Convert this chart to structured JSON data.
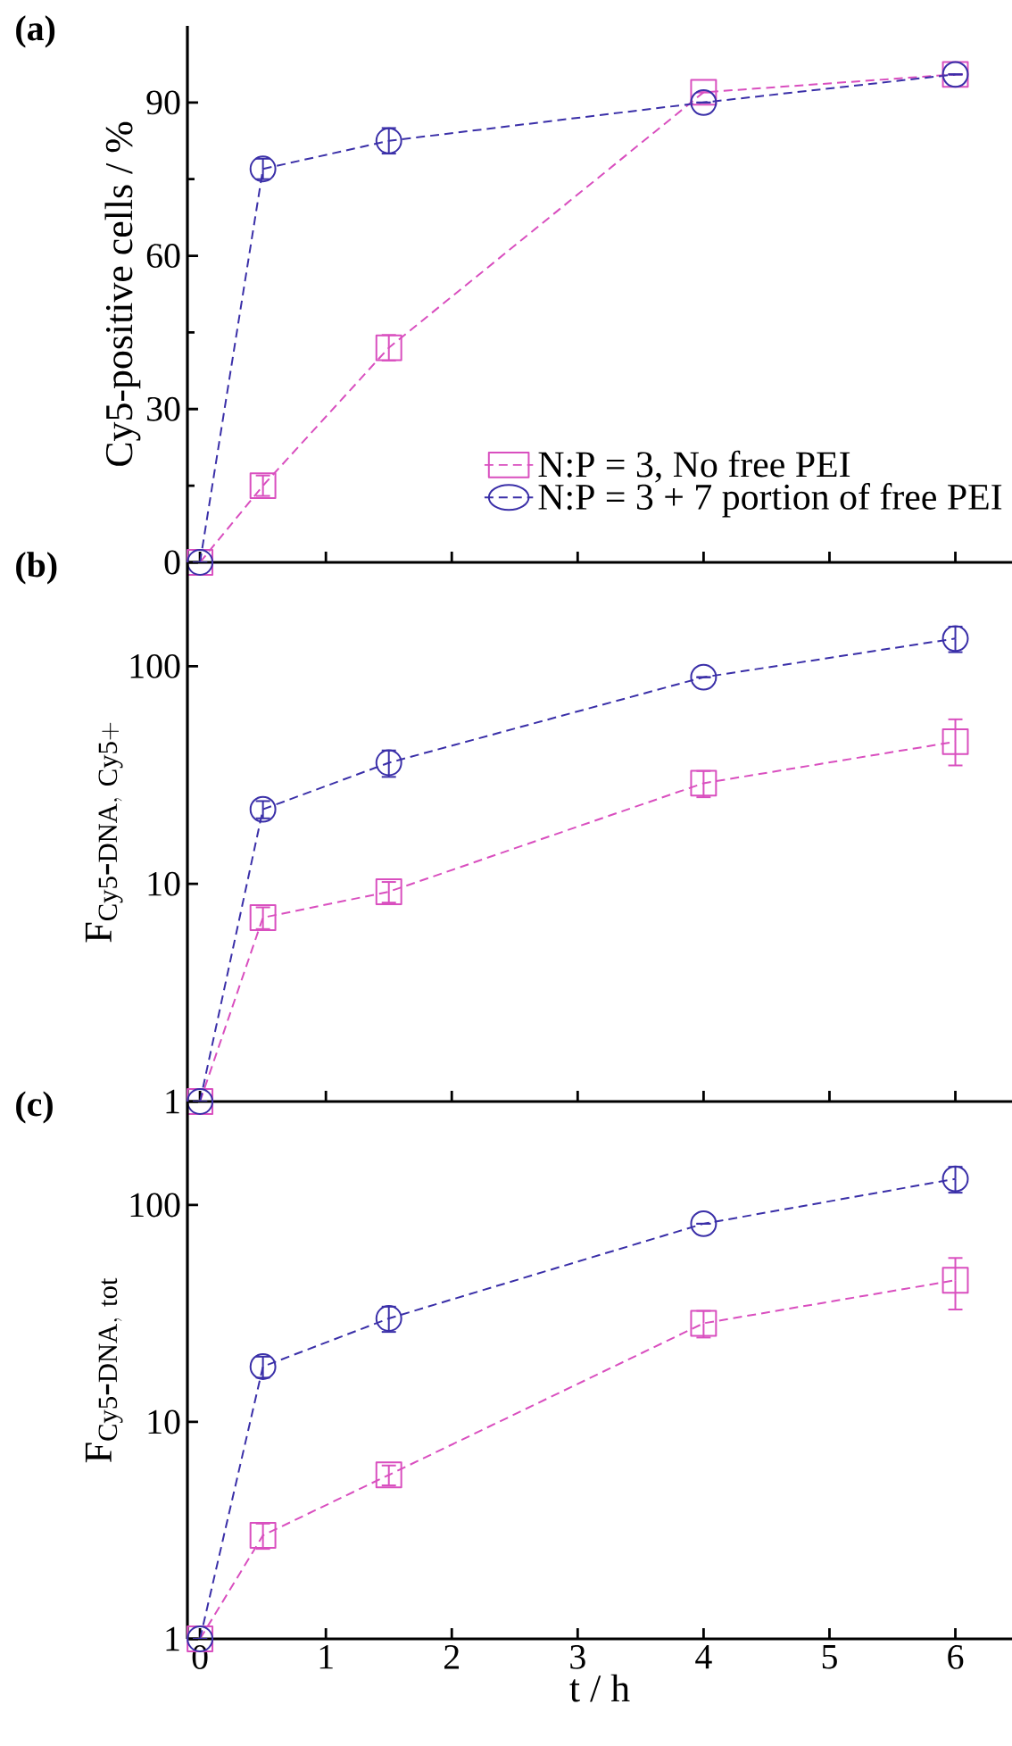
{
  "chart_data": [
    {
      "type": "line",
      "title": "(a)",
      "ylabel": "Cy5-positive cells / %",
      "x": [
        0,
        0.5,
        1.5,
        4,
        6
      ],
      "xlim": [
        -0.1,
        6.45
      ],
      "xticks": [
        0,
        1,
        2,
        3,
        4,
        5,
        6
      ],
      "ylim": [
        0,
        105
      ],
      "yticks": [
        0,
        30,
        60,
        90
      ],
      "tick_labels": "y",
      "legend": "bottom right",
      "line_style": "dashed",
      "series": [
        {
          "name": "N:P = 3, No free PEI",
          "color": "#d94fbf",
          "marker": "square",
          "values": [
            0,
            15,
            42,
            92,
            95.5
          ],
          "errors": [
            null,
            2,
            2.5,
            null,
            null
          ]
        },
        {
          "name": "N:P = 3 + 7 portion of free PEI",
          "color": "#3a2fa8",
          "marker": "circle",
          "values": [
            0,
            77,
            82.5,
            90,
            95.5
          ],
          "errors": [
            null,
            2,
            2.5,
            null,
            null
          ]
        }
      ]
    },
    {
      "type": "line",
      "title": "(b)",
      "ylabel": "\\mathrm{F}_{\\mathrm{Cy5\\mbox{-}DNA,\\ Cy5{+}}}",
      "x": [
        0,
        0.5,
        1.5,
        4,
        6
      ],
      "xlim": [
        -0.1,
        6.45
      ],
      "xticks": [
        0,
        1,
        2,
        3,
        4,
        5,
        6
      ],
      "ylim": [
        1,
        300
      ],
      "yticks": [
        1,
        10,
        100
      ],
      "log": "y",
      "tick_labels": "y",
      "line_style": "dashed",
      "series": [
        {
          "color": "#d94fbf",
          "marker": "square",
          "values": [
            1,
            7,
            9.2,
            29,
            45
          ],
          "errors": [
            null,
            0.8,
            1,
            4,
            [
              35,
              57
            ]
          ]
        },
        {
          "color": "#3a2fa8",
          "marker": "circle",
          "values": [
            1,
            22,
            36,
            89,
            134
          ],
          "errors": [
            null,
            2,
            5,
            null,
            18
          ]
        }
      ]
    },
    {
      "type": "line",
      "title": "(c)",
      "xlabel": "t / h",
      "ylabel": "\\mathrm{F}_{\\mathrm{Cy5\\mbox{-}DNA,\\ tot}}",
      "x": [
        0,
        0.5,
        1.5,
        4,
        6
      ],
      "xlim": [
        -0.1,
        6.45
      ],
      "xticks": [
        0,
        1,
        2,
        3,
        4,
        5,
        6
      ],
      "ylim": [
        1,
        300
      ],
      "yticks": [
        1,
        10,
        100
      ],
      "log": "y",
      "line_style": "dashed",
      "series": [
        {
          "color": "#d94fbf",
          "marker": "square",
          "values": [
            1,
            3,
            5.7,
            28.5,
            45
          ],
          "errors": [
            null,
            0.4,
            0.6,
            4,
            [
              33,
              57
            ]
          ]
        },
        {
          "color": "#3a2fa8",
          "marker": "circle",
          "values": [
            1,
            18,
            30,
            82,
            132
          ],
          "errors": [
            null,
            2,
            4,
            null,
            18
          ]
        }
      ]
    }
  ]
}
